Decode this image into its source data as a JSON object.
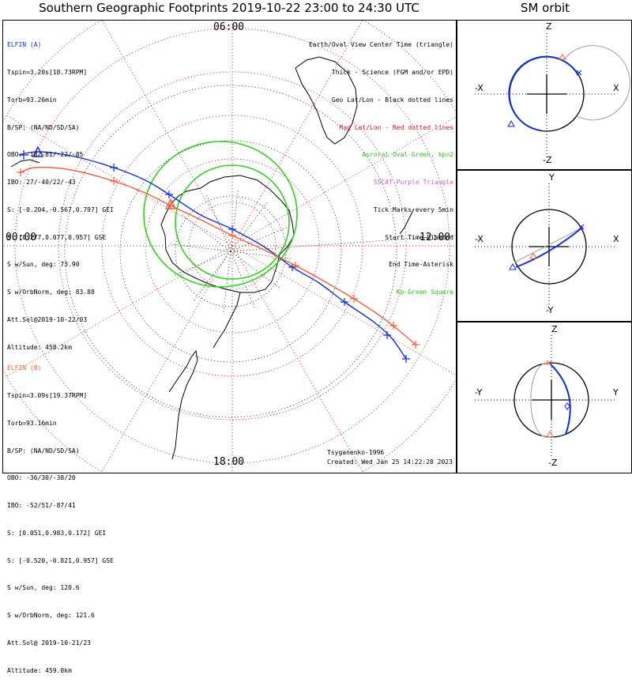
{
  "title": "Southern Geographic Footprints 2019-10-22 23:00 to 24:30 UTC",
  "sm_title": "SM orbit",
  "colors": {
    "elfin_a": "#1030d0",
    "elfin_b": "#f06040",
    "oval": "#30d020",
    "lat": "#d81818",
    "purple": "#d060d0"
  },
  "map": {
    "mlt_labels": {
      "top": "06:00",
      "bottom": "18:00",
      "left": "00:00",
      "right": "12:00"
    },
    "legend": [
      {
        "text": "Earth/Oval View Center Time (triangle)",
        "color": "#000000"
      },
      {
        "text": "Thick - Science (FGM and/or EPD)",
        "color": "#000000"
      },
      {
        "text": "Geo Lat/Lon - Black dotted lines",
        "color": "#000000"
      },
      {
        "text": "Mag Lat/Lon - Red dotted lines",
        "color": "#d81818"
      },
      {
        "text": "Auroral Oval-Green, kp=2",
        "color": "#30c020"
      },
      {
        "text": "SSCAT-Purple Triangle",
        "color": "#d060d0"
      },
      {
        "text": "Tick Marks every 5min",
        "color": "#000000"
      },
      {
        "text": "Start Time-Diamond",
        "color": "#000000"
      },
      {
        "text": "End Time-Asterisk",
        "color": "#000000"
      },
      {
        "text": "Kp-Green Square",
        "color": "#30c020"
      }
    ],
    "elfin_a": {
      "name": "ELFIN (A)",
      "lines": [
        "Tspin=3.20s[18.73RPM]",
        "Torb=93.26min",
        "B/SP: (NA/ND/SD/SA)",
        "OBO: -18/-81/-22/-85",
        "IBO: 27/-40/22/-43",
        "S: [-0.204,-0.567,0.797] GEI",
        "S: [0.277,0.077,0.957] GSE",
        "S w/Sun, deg: 73.90",
        "S w/OrbNorm, deg: 83.88",
        "Att.Sol@2019-10-22/03",
        "Altitude: 458.2km"
      ]
    },
    "elfin_b": {
      "name": "ELFIN (B)",
      "lines": [
        "Tspin=3.09s[19.37RPM]",
        "Torb=93.16min",
        "B/SP: (NA/ND/SD/SA)",
        "OBO: -36/30/-38/20",
        "IBO: -52/51/-87/41",
        "S: [0.051,0.983,0.172] GEI",
        "S: [-0.520,-0.821,0.957] GSE",
        "S w/Sun, deg: 120.6",
        "S w/OrbNorm, deg: 121.6",
        "Att.Sol@ 2019-10-21/23",
        "Altitude: 459.0km"
      ]
    },
    "model": "Tsyganenko-1996",
    "created": "Created: Wed Jan 25 14:22:28 2023"
  },
  "sm_panels": [
    {
      "top": "Z",
      "bottom": "-Z",
      "left": "-X",
      "right": "X"
    },
    {
      "top": "Y",
      "bottom": "-Y",
      "left": "-X",
      "right": "X"
    },
    {
      "top": "Z",
      "bottom": "-Z",
      "left": "-Y",
      "right": "Y"
    }
  ]
}
